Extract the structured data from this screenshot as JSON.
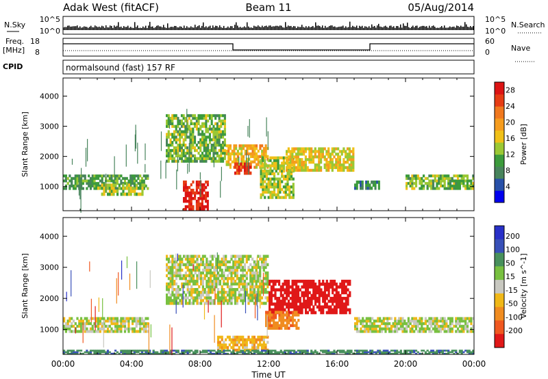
{
  "header": {
    "station": "Adak West (fitACF)",
    "beam": "Beam 11",
    "date": "05/Aug/2014"
  },
  "nsky_panel": {
    "left_label": "N.Sky",
    "left_ticks": [
      "10^5",
      "10^0"
    ],
    "right_label": "N.Search",
    "right_ticks": [
      "10^5",
      "10^0"
    ]
  },
  "freq_panel": {
    "left_label_1": "Freq.",
    "left_label_2": "[MHz]",
    "left_ticks": [
      "18",
      "8"
    ],
    "right_label": "Nave",
    "right_ticks": [
      "60",
      "0"
    ]
  },
  "cpid": {
    "label": "CPID",
    "text": "normalsound (fast) 157 RF"
  },
  "colors": {
    "power": [
      "#0000ee",
      "#2850a8",
      "#48845c",
      "#3c9b3c",
      "#9bc834",
      "#f0c018",
      "#f59c1e",
      "#f0781e",
      "#e63c14",
      "#dc1414"
    ],
    "velocity": [
      "#2830c8",
      "#3850b8",
      "#48905c",
      "#78c040",
      "#c8c8c0",
      "#f0b818",
      "#f08c20",
      "#f05820",
      "#e01818"
    ]
  },
  "chart_data": [
    {
      "type": "heatmap",
      "title": "",
      "xlabel": "Time UT",
      "ylabel": "Slant Range [km]",
      "x_ticks": [
        "00:00",
        "04:00",
        "08:00",
        "12:00",
        "16:00",
        "20:00",
        "00:00"
      ],
      "y_ticks": [
        1000,
        2000,
        3000,
        4000
      ],
      "ylim": [
        200,
        4600
      ],
      "colorbar": {
        "label": "Power [dB]",
        "ticks": [
          4,
          8,
          12,
          16,
          20,
          24,
          28
        ],
        "range": [
          0,
          30
        ]
      },
      "regions": [
        {
          "t0": 0.0,
          "t1": 5.0,
          "r0": 900,
          "r1": 1400,
          "val": 10
        },
        {
          "t0": 2.0,
          "t1": 4.8,
          "r0": 700,
          "r1": 1100,
          "val": 14
        },
        {
          "t0": 6.0,
          "t1": 9.5,
          "r0": 1800,
          "r1": 3400,
          "val": 12
        },
        {
          "t0": 9.5,
          "t1": 12.0,
          "r0": 1600,
          "r1": 2400,
          "val": 18
        },
        {
          "t0": 10.0,
          "t1": 11.0,
          "r0": 1400,
          "r1": 1800,
          "val": 26
        },
        {
          "t0": 11.5,
          "t1": 13.5,
          "r0": 600,
          "r1": 2000,
          "val": 14
        },
        {
          "t0": 13.0,
          "t1": 17.0,
          "r0": 1500,
          "r1": 2300,
          "val": 16
        },
        {
          "t0": 17.0,
          "t1": 18.5,
          "r0": 900,
          "r1": 1200,
          "val": 8
        },
        {
          "t0": 20.0,
          "t1": 24.0,
          "r0": 900,
          "r1": 1400,
          "val": 12
        },
        {
          "t0": 7.0,
          "t1": 8.5,
          "r0": 200,
          "r1": 1200,
          "val": 28
        }
      ]
    },
    {
      "type": "heatmap",
      "title": "",
      "xlabel": "Time UT",
      "ylabel": "Slant Range [km]",
      "x_ticks": [
        "00:00",
        "04:00",
        "08:00",
        "12:00",
        "16:00",
        "20:00",
        "00:00"
      ],
      "y_ticks": [
        1000,
        2000,
        3000,
        4000
      ],
      "ylim": [
        200,
        4600
      ],
      "colorbar": {
        "label": "Velocity [m s^-1]",
        "ticks": [
          200,
          100,
          50,
          15,
          -15,
          -50,
          -100,
          -200
        ]
      },
      "regions": [
        {
          "t0": 0.0,
          "t1": 5.0,
          "r0": 900,
          "r1": 1400,
          "val": 0
        },
        {
          "t0": 6.0,
          "t1": 12.0,
          "r0": 1800,
          "r1": 3400,
          "val": 0
        },
        {
          "t0": 12.0,
          "t1": 16.8,
          "r0": 1500,
          "r1": 2600,
          "val": -220
        },
        {
          "t0": 11.8,
          "t1": 13.8,
          "r0": 1000,
          "r1": 1600,
          "val": -80
        },
        {
          "t0": 9.0,
          "t1": 12.0,
          "r0": 300,
          "r1": 800,
          "val": -40
        },
        {
          "t0": 17.0,
          "t1": 24.0,
          "r0": 900,
          "r1": 1400,
          "val": 0
        },
        {
          "t0": 0.0,
          "t1": 24.0,
          "r0": 200,
          "r1": 350,
          "val": 60
        }
      ]
    }
  ]
}
